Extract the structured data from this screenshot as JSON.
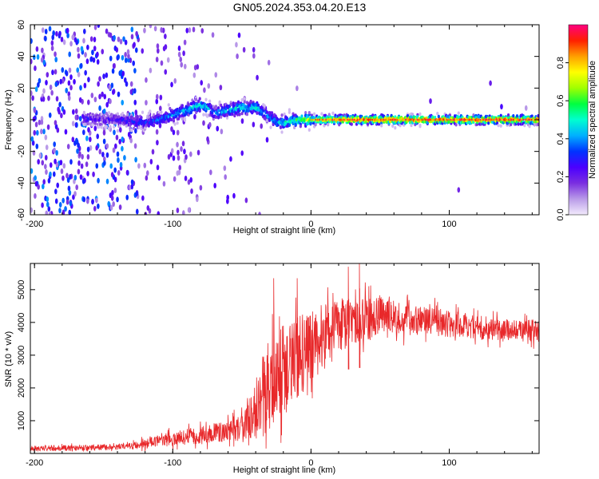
{
  "title": "GN05.2024.353.04.20.E13",
  "chart_data": [
    {
      "type": "heatmap",
      "xlabel": "Height of straight line (km)",
      "ylabel": "Frequency (Hz)",
      "xlim": [
        -203,
        165
      ],
      "ylim": [
        -60,
        60
      ],
      "xticks": [
        -200,
        -100,
        0,
        100
      ],
      "yticks": [
        -60,
        -40,
        -20,
        0,
        20,
        40,
        60
      ],
      "colorbar": {
        "label": "Normalized spectral amplitude",
        "range": [
          0,
          1
        ],
        "ticks": [
          0.0,
          0.2,
          0.4,
          0.6,
          0.8
        ],
        "colormap": [
          "#f2eafc",
          "#b99ae8",
          "#7a2ee0",
          "#4b00ff",
          "#0033ff",
          "#00b0ff",
          "#00ffd0",
          "#00ff40",
          "#a0ff00",
          "#ffff00",
          "#ffa000",
          "#ff2000",
          "#ff0080"
        ]
      },
      "ridge": {
        "description_points_x": [
          -165,
          -150,
          -140,
          -130,
          -120,
          -110,
          -100,
          -90,
          -80,
          -75,
          -70,
          -60,
          -50,
          -45,
          -40,
          -35,
          -30,
          -25,
          -20,
          -10,
          0,
          20,
          40,
          60,
          80,
          100,
          120,
          140,
          165
        ],
        "frequency_hz": [
          1,
          0,
          0,
          -1,
          -2,
          0,
          3,
          6,
          9,
          8,
          4,
          6,
          8,
          7,
          8,
          5,
          2,
          -2,
          -2,
          0,
          0,
          0,
          0,
          0,
          0,
          0,
          0,
          0,
          0
        ],
        "amplitude": [
          0.25,
          0.2,
          0.25,
          0.3,
          0.3,
          0.35,
          0.4,
          0.45,
          0.5,
          0.45,
          0.4,
          0.45,
          0.5,
          0.45,
          0.5,
          0.45,
          0.4,
          0.45,
          0.5,
          0.6,
          0.7,
          0.85,
          0.9,
          0.9,
          0.9,
          0.9,
          0.9,
          0.9,
          0.9
        ]
      }
    },
    {
      "type": "line",
      "xlabel": "Height of straight line (km)",
      "ylabel": "SNR (10 * v/v)",
      "xlim": [
        -203,
        165
      ],
      "ylim": [
        0,
        5800
      ],
      "xticks": [
        -200,
        -100,
        0,
        100
      ],
      "yticks": [
        1000,
        2000,
        3000,
        4000,
        5000
      ],
      "series": [
        {
          "color": "#e8282a",
          "envelope_x": [
            -203,
            -180,
            -160,
            -140,
            -130,
            -120,
            -110,
            -100,
            -90,
            -80,
            -70,
            -60,
            -50,
            -45,
            -40,
            -35,
            -30,
            -25,
            -20,
            -15,
            -10,
            -5,
            0,
            5,
            10,
            20,
            30,
            40,
            50,
            60,
            70,
            80,
            90,
            100,
            110,
            120,
            130,
            140,
            150,
            165
          ],
          "envelope_mean": [
            150,
            160,
            170,
            200,
            230,
            300,
            380,
            450,
            500,
            560,
            620,
            700,
            900,
            1100,
            1400,
            1700,
            1900,
            2200,
            2500,
            2700,
            2900,
            3100,
            3300,
            3500,
            3700,
            3900,
            4050,
            4150,
            4150,
            4150,
            4100,
            4050,
            4000,
            3950,
            3900,
            3850,
            3800,
            3800,
            3750,
            3750
          ],
          "envelope_spread": [
            120,
            120,
            120,
            130,
            150,
            200,
            250,
            300,
            330,
            350,
            400,
            450,
            700,
            900,
            1300,
            1600,
            1800,
            1900,
            1900,
            1800,
            1700,
            1600,
            1500,
            1400,
            1300,
            1100,
            1000,
            900,
            800,
            700,
            650,
            600,
            600,
            550,
            550,
            500,
            500,
            450,
            450,
            450
          ],
          "notable_peaks": [
            {
              "x": -27,
              "y": 5350
            },
            {
              "x": -10,
              "y": 5350
            },
            {
              "x": 27,
              "y": 5700
            },
            {
              "x": 35,
              "y": 5800
            }
          ]
        }
      ]
    }
  ]
}
